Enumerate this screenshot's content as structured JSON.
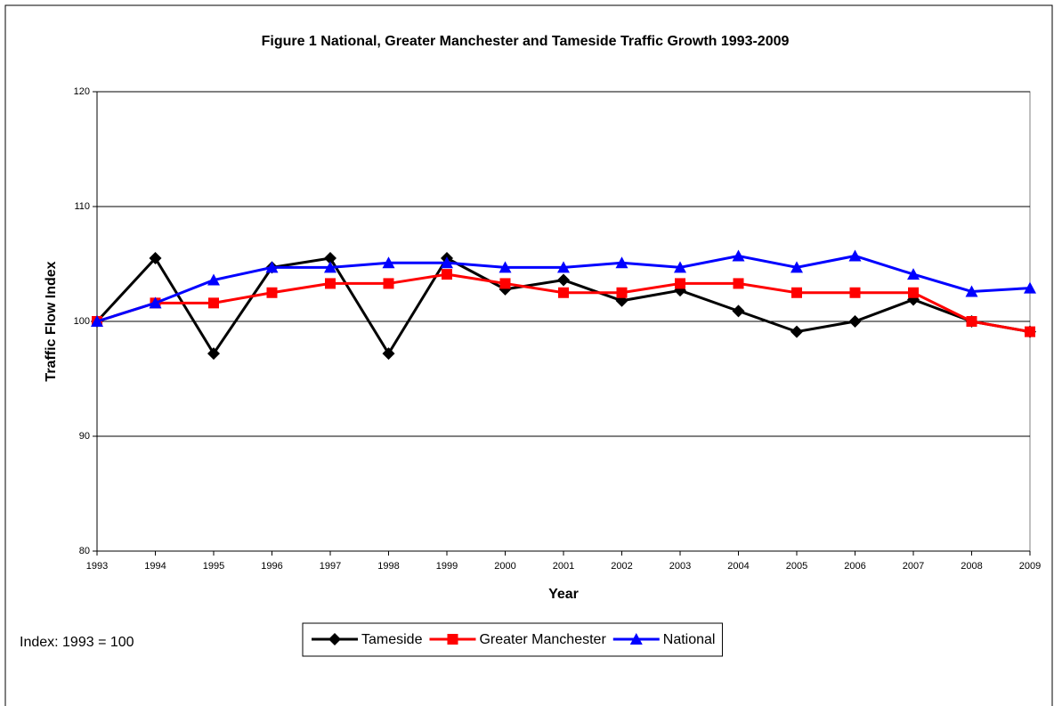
{
  "chart_data": {
    "type": "line",
    "title": "Figure 1 National, Greater Manchester and Tameside Traffic Growth 1993-2009",
    "x_label": "Year",
    "y_label": "Traffic Flow Index",
    "annotation": "Index: 1993 = 100",
    "categories": [
      "1993",
      "1994",
      "1995",
      "1996",
      "1997",
      "1998",
      "1999",
      "2000",
      "2001",
      "2002",
      "2003",
      "2004",
      "2005",
      "2006",
      "2007",
      "2008",
      "2009"
    ],
    "series": [
      {
        "name": "Tameside",
        "color": "#000000",
        "marker": "diamond",
        "values": [
          100,
          105.5,
          97.2,
          104.7,
          105.5,
          97.2,
          105.5,
          102.8,
          103.6,
          101.8,
          102.7,
          100.9,
          99.1,
          100,
          101.9,
          100,
          99.1
        ]
      },
      {
        "name": "Greater Manchester",
        "color": "#ff0000",
        "marker": "square",
        "values": [
          100,
          101.6,
          101.6,
          102.5,
          103.3,
          103.3,
          104.1,
          103.3,
          102.5,
          102.5,
          103.3,
          103.3,
          102.5,
          102.5,
          102.5,
          100,
          99.1
        ]
      },
      {
        "name": "National",
        "color": "#0000ff",
        "marker": "triangle",
        "values": [
          100,
          101.6,
          103.6,
          104.7,
          104.7,
          105.1,
          105.1,
          104.7,
          104.7,
          105.1,
          104.7,
          105.7,
          104.7,
          105.7,
          104.1,
          102.6,
          102.9
        ]
      }
    ],
    "ylim": [
      80,
      120
    ],
    "yticks": [
      80,
      90,
      100,
      110,
      120
    ],
    "grid": true,
    "legend": "bottom"
  }
}
